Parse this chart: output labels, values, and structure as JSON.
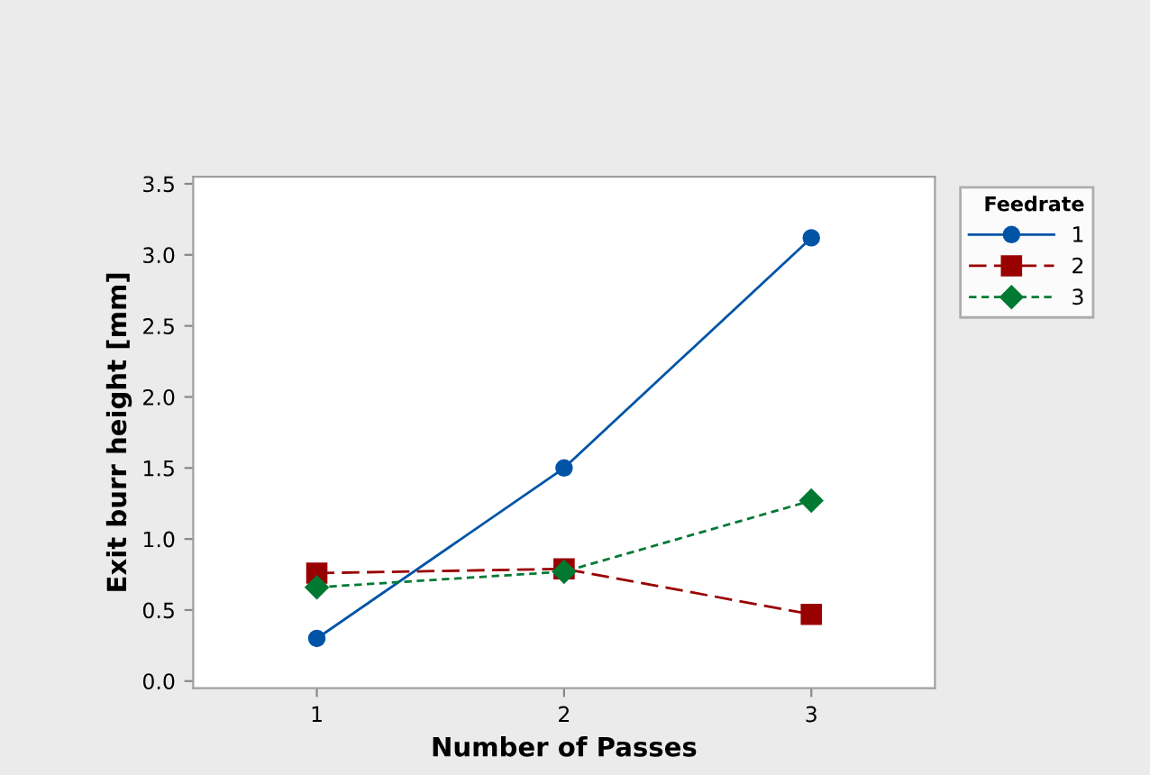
{
  "chart_data": {
    "type": "line",
    "xlabel": "Number of Passes",
    "ylabel": "Exit burr height [mm]",
    "legend_title": "Feedrate",
    "x": [
      1,
      2,
      3
    ],
    "xlim": [
      0.5,
      3.5
    ],
    "xticks": [
      1,
      2,
      3
    ],
    "ylim": [
      -0.05,
      3.55
    ],
    "yticks": [
      {
        "value": 0,
        "label": "0.0"
      },
      {
        "value": 0.5,
        "label": "0.5"
      },
      {
        "value": 1,
        "label": "1.0"
      },
      {
        "value": 1.5,
        "label": "1.5"
      },
      {
        "value": 2,
        "label": "2.0"
      },
      {
        "value": 2.5,
        "label": "2.5"
      },
      {
        "value": 3,
        "label": "3.0"
      },
      {
        "value": 3.5,
        "label": "3.5"
      }
    ],
    "grid": false,
    "legend": "right",
    "series": [
      {
        "name": "1",
        "color": "#0054a6",
        "values": [
          0.3,
          1.5,
          3.12
        ],
        "marker": "circle",
        "line_style": "solid"
      },
      {
        "name": "2",
        "color": "#990000",
        "values": [
          0.76,
          0.79,
          0.47
        ],
        "marker": "square",
        "line_style": "dashed"
      },
      {
        "name": "3",
        "color": "#007a33",
        "values": [
          0.66,
          0.77,
          1.27
        ],
        "marker": "diamond",
        "line_style": "dotted"
      }
    ]
  }
}
